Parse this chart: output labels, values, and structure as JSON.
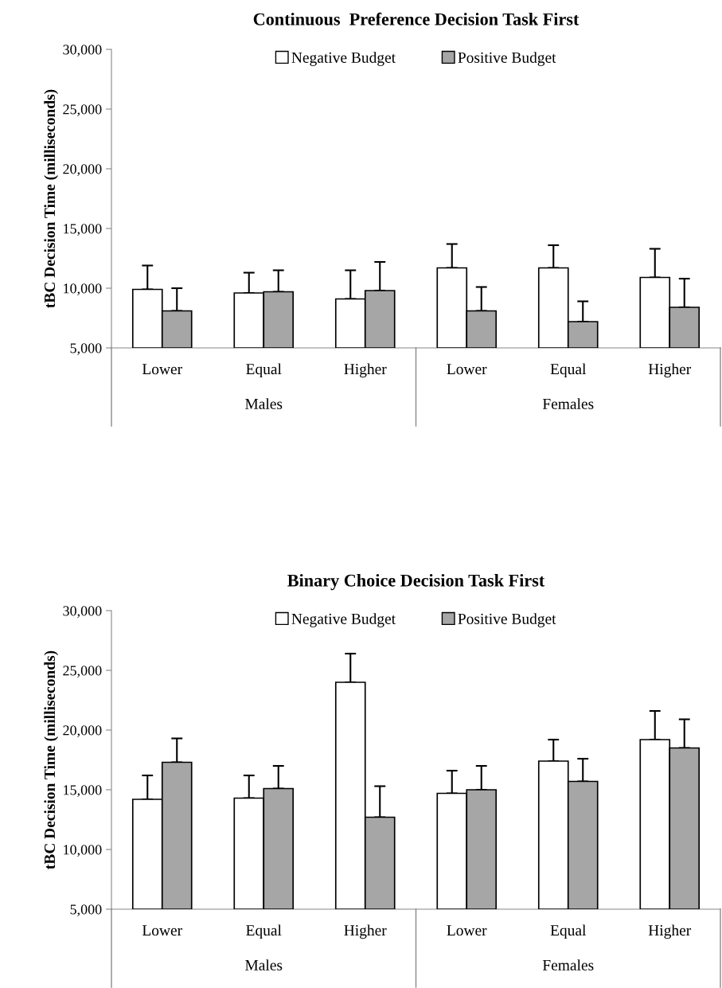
{
  "chart_data": [
    {
      "type": "bar",
      "title": "Continuous  Preference Decision Task First",
      "ylabel": "tBC Decision Time (milliseconds)",
      "categories": [
        "Lower",
        "Equal",
        "Higher",
        "Lower",
        "Equal",
        "Higher"
      ],
      "series": [
        {
          "name": "Negative Budget",
          "color": "#ffffff",
          "values": [
            9900,
            9600,
            9100,
            11700,
            11700,
            10900
          ],
          "errors": [
            2000,
            1700,
            2400,
            2000,
            1900,
            2400
          ]
        },
        {
          "name": "Positive Budget",
          "color": "#a6a6a6",
          "values": [
            8100,
            9700,
            9800,
            8100,
            7200,
            8400
          ],
          "errors": [
            1900,
            1800,
            2400,
            2000,
            1700,
            2400
          ]
        }
      ],
      "annotations": [
        "Males",
        "Females"
      ],
      "ylim": [
        5000,
        30000
      ],
      "yticks": [
        {
          "value": 5000,
          "label": "5,000"
        },
        {
          "value": 10000,
          "label": "10,000"
        },
        {
          "value": 15000,
          "label": "15,000"
        },
        {
          "value": 20000,
          "label": "20,000"
        },
        {
          "value": 25000,
          "label": "25,000"
        },
        {
          "value": 30000,
          "label": "30,000"
        }
      ],
      "legend": "top",
      "grid": false
    },
    {
      "type": "bar",
      "title": "Binary Choice Decision Task First",
      "ylabel": "tBC Decision Time (milliseconds)",
      "categories": [
        "Lower",
        "Equal",
        "Higher",
        "Lower",
        "Equal",
        "Higher"
      ],
      "series": [
        {
          "name": "Negative Budget",
          "color": "#ffffff",
          "values": [
            14200,
            14300,
            24000,
            14700,
            17400,
            19200
          ],
          "errors": [
            2000,
            1900,
            2400,
            1900,
            1800,
            2400
          ]
        },
        {
          "name": "Positive Budget",
          "color": "#a6a6a6",
          "values": [
            17300,
            15100,
            12700,
            15000,
            15700,
            18500
          ],
          "errors": [
            2000,
            1900,
            2600,
            2000,
            1900,
            2400
          ]
        }
      ],
      "annotations": [
        "Males",
        "Females"
      ],
      "ylim": [
        5000,
        30000
      ],
      "yticks": [
        {
          "value": 5000,
          "label": "5,000"
        },
        {
          "value": 10000,
          "label": "10,000"
        },
        {
          "value": 15000,
          "label": "15,000"
        },
        {
          "value": 20000,
          "label": "20,000"
        },
        {
          "value": 25000,
          "label": "25,000"
        },
        {
          "value": 30000,
          "label": "30,000"
        }
      ],
      "legend": "top",
      "grid": false
    }
  ]
}
